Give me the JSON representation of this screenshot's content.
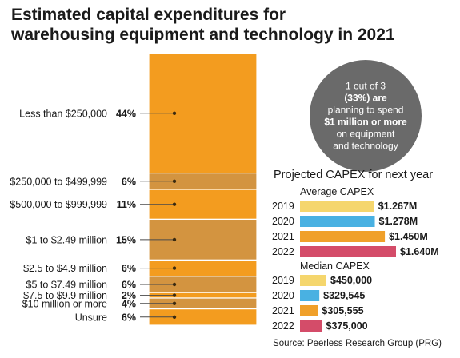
{
  "title_lines": [
    "Estimated capital expenditures for",
    "warehousing equipment and technology in 2021"
  ],
  "colors": {
    "primary_orange": "#f39c1f",
    "tan": "#d39440",
    "separator": "#ffffff",
    "callout_gray": "#6a6a6a",
    "year_2019": "#f5d66d",
    "year_2020": "#49b1e2",
    "year_2021": "#f0a02a",
    "year_2022": "#d44c69"
  },
  "callout": {
    "lines": [
      {
        "text": "1 out of 3",
        "bold": false
      },
      {
        "text": "(33%) are",
        "bold": true
      },
      {
        "text": "planning to spend",
        "bold": false
      },
      {
        "text": "$1 million or more",
        "bold": true
      },
      {
        "text": "on equipment",
        "bold": false
      },
      {
        "text": "and technology",
        "bold": false
      }
    ]
  },
  "projected": {
    "heading": "Projected CAPEX for next year",
    "average_label": "Average CAPEX",
    "median_label": "Median CAPEX"
  },
  "source": "Source: Peerless Research Group (PRG)",
  "chart_data": [
    {
      "type": "bar",
      "subtype": "stacked-100-percent",
      "title": "Estimated capital expenditures for warehousing equipment and technology in 2021",
      "categories": [
        "Less than $250,000",
        "$250,000 to $499,999",
        "$500,000 to $999,999",
        "$1 to $2.49 million",
        "$2.5 to $4.9 million",
        "$5 to $7.49 million",
        "$7.5 to $9.9 million",
        "$10 million or more",
        "Unsure"
      ],
      "values": [
        44,
        6,
        11,
        15,
        6,
        6,
        2,
        4,
        6
      ],
      "labels": [
        "44%",
        "6%",
        "11%",
        "15%",
        "6%",
        "6%",
        "2%",
        "4%",
        "6%"
      ],
      "segment_colors": [
        "#f39c1f",
        "#d39440",
        "#f39c1f",
        "#d39440",
        "#f39c1f",
        "#d39440",
        "#f39c1f",
        "#d39440",
        "#f39c1f"
      ]
    },
    {
      "type": "bar",
      "orientation": "horizontal",
      "title": "Average CAPEX",
      "categories": [
        "2019",
        "2020",
        "2021",
        "2022"
      ],
      "values": [
        1.267,
        1.278,
        1.45,
        1.64
      ],
      "labels": [
        "$1.267M",
        "$1.278M",
        "$1.450M",
        "$1.640M"
      ],
      "unit": "$M",
      "xlim": [
        0,
        1.64
      ]
    },
    {
      "type": "bar",
      "orientation": "horizontal",
      "title": "Median CAPEX",
      "categories": [
        "2019",
        "2020",
        "2021",
        "2022"
      ],
      "values": [
        450000,
        329545,
        305555,
        375000
      ],
      "labels": [
        "$450,000",
        "$329,545",
        "$305,555",
        "$375,000"
      ],
      "unit": "$",
      "xlim": [
        0,
        450000
      ]
    }
  ]
}
